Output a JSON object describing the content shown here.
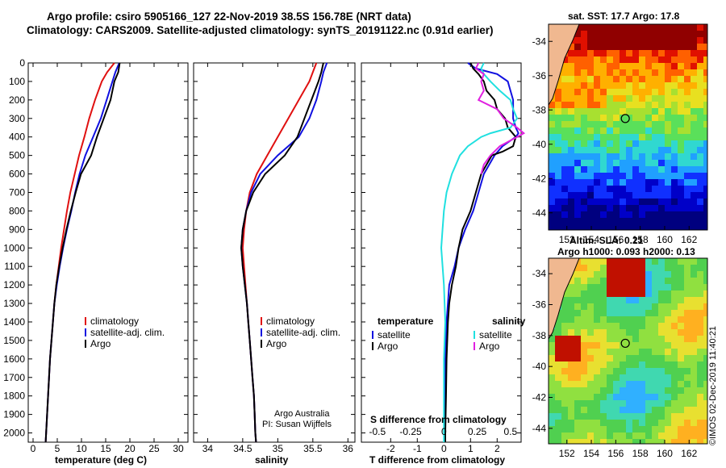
{
  "header": {
    "title_line1": "Argo profile: csiro 5905166_127 22-Nov-2019 38.5S 156.78E (NRT data)",
    "title_line2": "Climatology: CARS2009. Satellite-adjusted climatology: synTS_20191122.nc (0.91d earlier)"
  },
  "colors": {
    "climatology": "#e01010",
    "satellite": "#1010e0",
    "argo": "#000000",
    "satellite_salinity": "#20e0e0",
    "argo_salinity": "#e020e0"
  },
  "depth_axis": {
    "ticks": [
      "0",
      "100",
      "200",
      "300",
      "400",
      "500",
      "600",
      "700",
      "800",
      "900",
      "1000",
      "1100",
      "1200",
      "1300",
      "1400",
      "1500",
      "1600",
      "1700",
      "1800",
      "1900",
      "2000"
    ]
  },
  "chart_data": [
    {
      "type": "line",
      "title": "temperature (deg C)",
      "xlabel": "temperature (deg C)",
      "ylabel": "depth",
      "xlim": [
        -1,
        32
      ],
      "ylim": [
        2050,
        0
      ],
      "xticks": [
        "0",
        "5",
        "10",
        "15",
        "20",
        "25",
        "30"
      ],
      "legend_labels": [
        "climatology",
        "satellite-adj. clim.",
        "Argo"
      ],
      "series": [
        {
          "name": "climatology",
          "depth": [
            0,
            50,
            100,
            200,
            300,
            400,
            500,
            600,
            700,
            800,
            900,
            1000,
            1100,
            1200,
            1300,
            1400,
            1500,
            1600,
            1700,
            1800,
            1900,
            2000,
            2050
          ],
          "values": [
            16.8,
            15.3,
            14.2,
            12.8,
            11.6,
            10.6,
            9.5,
            8.6,
            7.7,
            7.0,
            6.4,
            5.8,
            5.3,
            4.8,
            4.4,
            4.1,
            3.8,
            3.5,
            3.3,
            3.1,
            2.9,
            2.7,
            2.6
          ]
        },
        {
          "name": "satellite-adj. clim.",
          "depth": [
            0,
            50,
            100,
            200,
            300,
            400,
            500,
            600,
            700,
            800,
            900,
            1000,
            1100,
            1200,
            1300,
            1400,
            1500,
            1600,
            1700,
            1800,
            1900,
            2000,
            2050
          ],
          "values": [
            17.8,
            17.0,
            16.4,
            15.2,
            14.0,
            12.4,
            10.8,
            9.6,
            8.7,
            7.9,
            7.0,
            6.2,
            5.5,
            4.9,
            4.4,
            4.1,
            3.8,
            3.5,
            3.3,
            3.1,
            2.9,
            2.7,
            2.6
          ]
        },
        {
          "name": "Argo",
          "depth": [
            0,
            50,
            100,
            200,
            300,
            400,
            500,
            600,
            700,
            800,
            900,
            1000,
            1100,
            1200,
            1300,
            1400,
            1500,
            1600,
            1700,
            1800,
            1900,
            2000,
            2050
          ],
          "values": [
            17.9,
            17.6,
            16.8,
            16.0,
            14.6,
            13.2,
            12.0,
            9.9,
            8.8,
            7.8,
            6.9,
            6.1,
            5.4,
            4.8,
            4.4,
            4.1,
            3.8,
            3.5,
            3.3,
            3.1,
            2.9,
            2.7,
            2.6
          ]
        }
      ]
    },
    {
      "type": "line",
      "title": "salinity",
      "xlabel": "salinity",
      "ylabel": "depth",
      "xlim": [
        33.8,
        36.1
      ],
      "ylim": [
        2050,
        0
      ],
      "xticks": [
        "34",
        "34.5",
        "35",
        "35.5",
        "36"
      ],
      "legend_labels": [
        "climatology",
        "satellite-adj. clim.",
        "Argo"
      ],
      "credit_line1": "Argo Australia",
      "credit_line2": "PI: Susan Wijffels",
      "series": [
        {
          "name": "climatology",
          "depth": [
            0,
            50,
            100,
            200,
            300,
            400,
            500,
            600,
            700,
            800,
            900,
            1000,
            1100,
            1200,
            1300,
            1400,
            1500,
            1600,
            1700,
            1800,
            1900,
            2000,
            2050
          ],
          "values": [
            35.55,
            35.5,
            35.45,
            35.3,
            35.15,
            35.0,
            34.85,
            34.7,
            34.6,
            34.55,
            34.52,
            34.5,
            34.52,
            34.54,
            34.56,
            34.58,
            34.6,
            34.62,
            34.64,
            34.66,
            34.67,
            34.68,
            34.69
          ]
        },
        {
          "name": "satellite-adj. clim.",
          "depth": [
            0,
            50,
            100,
            200,
            300,
            400,
            500,
            600,
            700,
            800,
            900,
            1000,
            1100,
            1200,
            1300,
            1400,
            1500,
            1600,
            1700,
            1800,
            1900,
            2000,
            2050
          ],
          "values": [
            35.7,
            35.65,
            35.62,
            35.55,
            35.45,
            35.3,
            35.0,
            34.75,
            34.62,
            34.55,
            34.5,
            34.48,
            34.5,
            34.53,
            34.56,
            34.58,
            34.6,
            34.62,
            34.64,
            34.66,
            34.67,
            34.68,
            34.69
          ]
        },
        {
          "name": "Argo",
          "depth": [
            0,
            50,
            100,
            200,
            300,
            400,
            500,
            600,
            700,
            800,
            900,
            1000,
            1100,
            1200,
            1300,
            1400,
            1500,
            1600,
            1700,
            1800,
            1900,
            2000,
            2050
          ],
          "values": [
            35.65,
            35.62,
            35.58,
            35.48,
            35.38,
            35.28,
            35.1,
            34.82,
            34.65,
            34.55,
            34.5,
            34.48,
            34.5,
            34.53,
            34.56,
            34.58,
            34.6,
            34.62,
            34.64,
            34.66,
            34.67,
            34.68,
            34.69
          ]
        }
      ]
    },
    {
      "type": "line",
      "title": "T difference from climatology",
      "xlabel": "T difference from climatology",
      "secondary_xlabel": "S difference from climatology",
      "ylabel": "depth",
      "xlim": [
        -3.1,
        2.9
      ],
      "ylim": [
        2050,
        0
      ],
      "xticks": [
        "-2",
        "-1",
        "0",
        "1",
        "2"
      ],
      "secondary_xticks": [
        "-0.5",
        "-0.25",
        "0",
        "0.25",
        "0.5"
      ],
      "legend_temperature_header": "temperature",
      "legend_salinity_header": "salinity",
      "legend_temperature_labels": [
        "satellite",
        "Argo"
      ],
      "legend_salinity_labels": [
        "satellite",
        "Argo"
      ],
      "series": [
        {
          "name": "temperature satellite",
          "depth": [
            0,
            30,
            60,
            100,
            150,
            200,
            250,
            300,
            350,
            380,
            400,
            450,
            500,
            600,
            700,
            800,
            900,
            1000,
            1100,
            1200,
            1400,
            1600,
            1800,
            2000,
            2050
          ],
          "values": [
            0.9,
            1.2,
            2.0,
            2.4,
            2.5,
            2.6,
            2.6,
            2.6,
            2.7,
            2.8,
            2.7,
            2.2,
            1.9,
            1.5,
            1.3,
            1.1,
            0.8,
            0.55,
            0.4,
            0.2,
            0.1,
            0.05,
            0.05,
            0.05,
            0.05
          ]
        },
        {
          "name": "temperature Argo",
          "depth": [
            0,
            30,
            60,
            100,
            150,
            200,
            250,
            300,
            350,
            400,
            450,
            480,
            500,
            600,
            700,
            800,
            900,
            1000,
            1100,
            1200,
            1300,
            1400,
            1600,
            1800,
            2000,
            2050
          ],
          "values": [
            1.0,
            1.1,
            1.3,
            1.5,
            1.6,
            1.9,
            2.0,
            2.3,
            2.4,
            2.7,
            2.6,
            2.2,
            1.8,
            1.4,
            1.2,
            1.0,
            0.7,
            0.55,
            0.45,
            0.3,
            0.2,
            0.15,
            0.1,
            0.08,
            0.05,
            0.05
          ]
        },
        {
          "name": "salinity satellite",
          "depth": [
            0,
            30,
            60,
            100,
            150,
            200,
            250,
            300,
            350,
            380,
            400,
            450,
            500,
            600,
            700,
            800,
            900,
            1000,
            1200,
            1400,
            1600,
            1800,
            2000,
            2050
          ],
          "values": [
            0.3,
            0.28,
            0.3,
            0.35,
            0.42,
            0.5,
            0.52,
            0.55,
            0.5,
            0.35,
            0.28,
            0.18,
            0.12,
            0.06,
            0.02,
            0.0,
            -0.01,
            -0.02,
            0.0,
            0.01,
            0.0,
            0.0,
            0.0,
            0.0
          ]
        },
        {
          "name": "salinity Argo",
          "depth": [
            0,
            30,
            60,
            100,
            150,
            200,
            250,
            300,
            350,
            380,
            400,
            450,
            500,
            550,
            600
          ],
          "values": [
            0.26,
            0.24,
            0.3,
            0.28,
            0.3,
            0.26,
            0.4,
            0.45,
            0.55,
            0.6,
            0.55,
            0.42,
            0.35,
            0.3,
            0.28
          ]
        }
      ]
    },
    {
      "type": "heatmap",
      "title": "sat. SST: 17.7 Argo: 17.8",
      "xticks": [
        "152",
        "154",
        "156",
        "158",
        "160",
        "162"
      ],
      "yticks": [
        "-34",
        "-36",
        "-38",
        "-40",
        "-42",
        "-44"
      ],
      "xlim": [
        150.5,
        163.5
      ],
      "ylim": [
        -45,
        -33
      ],
      "argo_lon": 156.78,
      "argo_lat": -38.5
    },
    {
      "type": "heatmap",
      "title_line1": "Altim. SLA: 0.21",
      "title_line2": "Argo h1000: 0.093 h2000: 0.13",
      "xticks": [
        "152",
        "154",
        "156",
        "158",
        "160",
        "162"
      ],
      "yticks": [
        "-34",
        "-36",
        "-38",
        "-40",
        "-42",
        "-44"
      ],
      "xlim": [
        150.5,
        163.5
      ],
      "ylim": [
        -45,
        -33
      ],
      "argo_lon": 156.78,
      "argo_lat": -38.5,
      "side_label": "©IMOS 02-Dec-2019 11:40:21"
    }
  ]
}
